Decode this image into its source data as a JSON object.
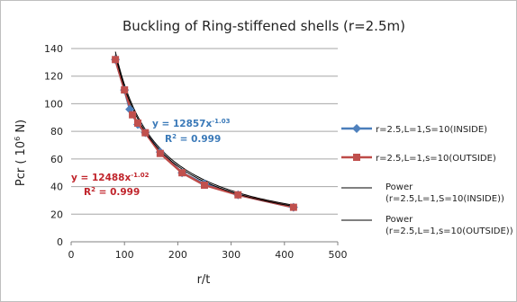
{
  "chart_data": {
    "type": "line",
    "title": "Buckling of Ring-stiffened shells (r=2.5m)",
    "xlabel": "r/t",
    "ylabel_main": "Pcr ( 10",
    "ylabel_sup": "6",
    "ylabel_tail": " N)",
    "xlim": [
      0,
      500
    ],
    "ylim": [
      0,
      140
    ],
    "xticks": [
      0,
      100,
      200,
      300,
      400,
      500
    ],
    "yticks": [
      0,
      20,
      40,
      60,
      80,
      100,
      120,
      140
    ],
    "grid": "horizontal",
    "legend_position": "right",
    "colors": {
      "inside": "#4a7ebb",
      "inside_marker": "#4f81bd",
      "outside": "#be4b48",
      "outside_marker": "#c0504d",
      "trend": "#000000",
      "grid": "#a6a6a6",
      "eq_inside": "#3a79b8",
      "eq_outside": "#c0242b"
    },
    "series": [
      {
        "name": "r=2.5,L=1,S=10(INSIDE)",
        "marker": "diamond",
        "points": [
          [
            83,
            132
          ],
          [
            100,
            110
          ],
          [
            110,
            96
          ],
          [
            125,
            85
          ],
          [
            139,
            79
          ],
          [
            167,
            65
          ],
          [
            208,
            50
          ],
          [
            250,
            42
          ],
          [
            313,
            34
          ],
          [
            417,
            25
          ]
        ]
      },
      {
        "name": "r=2.5,L=1,s=10(OUTSIDE)",
        "marker": "square",
        "points": [
          [
            83,
            132
          ],
          [
            100,
            110
          ],
          [
            115,
            92
          ],
          [
            125,
            86
          ],
          [
            139,
            79
          ],
          [
            167,
            64
          ],
          [
            208,
            50
          ],
          [
            250,
            41
          ],
          [
            313,
            34
          ],
          [
            417,
            25
          ]
        ]
      },
      {
        "name": "Power (r=2.5,L=1,S=10(INSIDE))",
        "trend": {
          "coef": 12857,
          "exp": -1.03,
          "from": 83,
          "to": 417
        }
      },
      {
        "name": "Power (r=2.5,L=1,s=10(OUTSIDE))",
        "trend": {
          "coef": 12488,
          "exp": -1.02,
          "from": 83,
          "to": 417
        }
      }
    ],
    "legend": {
      "inside": "r=2.5,L=1,S=10(INSIDE)",
      "outside": "r=2.5,L=1,s=10(OUTSIDE)",
      "power_inside_1": "Power",
      "power_inside_2": "(r=2.5,L=1,S=10(INSIDE))",
      "power_outside_1": "Power",
      "power_outside_2": "(r=2.5,L=1,s=10(OUTSIDE))"
    },
    "annotations": {
      "inside_eq_base": "y = 12857x",
      "inside_eq_exp": "-1.03",
      "inside_r2_base": "R",
      "inside_r2_tail": " = 0.999",
      "outside_eq_base": "y = 12488x",
      "outside_eq_exp": "-1.02",
      "outside_r2_base": "R",
      "outside_r2_tail": " = 0.999",
      "r2_sup": "2"
    }
  }
}
